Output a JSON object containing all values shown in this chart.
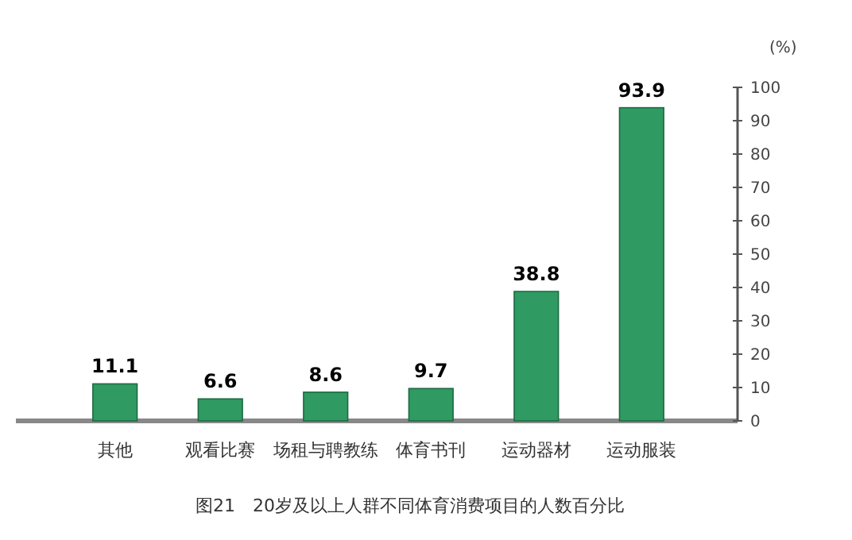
{
  "chart_data": {
    "type": "bar",
    "title": "图21　20岁及以上人群不同体育消费项目的人数百分比",
    "ylabel": "(%)",
    "categories": [
      "其他",
      "观看比赛",
      "场租与聘教练",
      "体育书刊",
      "运动器材",
      "运动服装"
    ],
    "values": [
      11.1,
      6.6,
      8.6,
      9.7,
      38.8,
      93.9
    ],
    "color": "#2f9a62",
    "ylim": [
      0,
      100
    ],
    "yticks": [
      0,
      10,
      20,
      30,
      40,
      50,
      60,
      70,
      80,
      90,
      100
    ],
    "data_labels": true
  }
}
